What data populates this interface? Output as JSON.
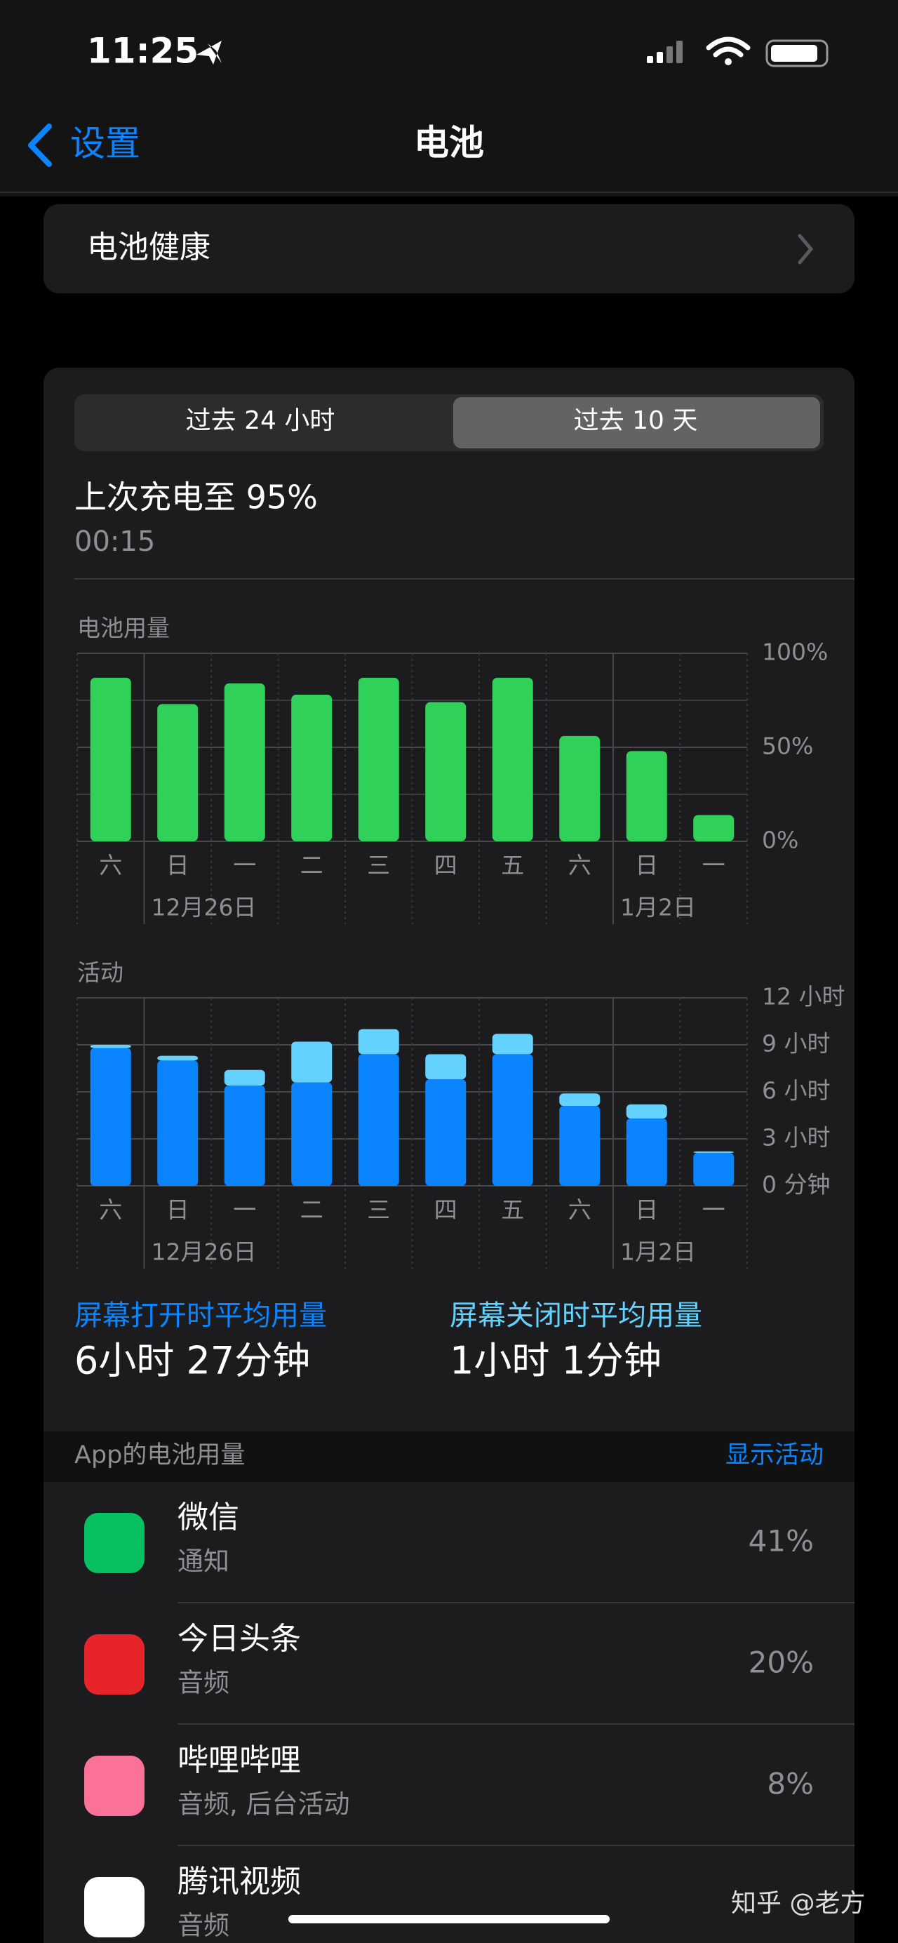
{
  "status_bar": {
    "time": "11:25"
  },
  "nav": {
    "back": "设置",
    "title": "电池"
  },
  "battery_health": "电池健康",
  "segments": [
    "过去 24 小时",
    "过去 10 天"
  ],
  "last_charge": {
    "title": "上次充电至 95%",
    "time": "00:15"
  },
  "chart_data": [
    {
      "type": "bar",
      "title": "电池用量",
      "categories": [
        "六",
        "日",
        "一",
        "二",
        "三",
        "四",
        "五",
        "六",
        "日",
        "一"
      ],
      "x_dates": [
        null,
        "12月26日",
        null,
        null,
        null,
        null,
        null,
        null,
        "1月2日",
        null
      ],
      "values": [
        87,
        73,
        84,
        78,
        87,
        74,
        87,
        56,
        48,
        14
      ],
      "color": "#30d158",
      "ylim": [
        0,
        100
      ],
      "yticks": [
        {
          "value": 0,
          "label": "0%"
        },
        {
          "value": 50,
          "label": "50%"
        },
        {
          "value": 100,
          "label": "100%"
        }
      ],
      "minor_yticks": [
        25,
        75
      ],
      "grid": true
    },
    {
      "type": "stacked_bar",
      "title": "活动",
      "categories": [
        "六",
        "日",
        "一",
        "二",
        "三",
        "四",
        "五",
        "六",
        "日",
        "一"
      ],
      "x_dates": [
        null,
        "12月26日",
        null,
        null,
        null,
        null,
        null,
        null,
        "1月2日",
        null
      ],
      "series": [
        {
          "name": "屏幕打开时平均用量",
          "color": "#0a84ff",
          "values": [
            8.8,
            8.0,
            6.4,
            6.6,
            8.4,
            6.8,
            8.4,
            5.1,
            4.3,
            2.1
          ]
        },
        {
          "name": "屏幕关闭时平均用量",
          "color": "#64d2ff",
          "values": [
            0.2,
            0.3,
            1.0,
            2.6,
            1.6,
            1.6,
            1.3,
            0.8,
            0.9,
            0.1
          ]
        }
      ],
      "ylim": [
        0,
        12
      ],
      "yticks": [
        {
          "value": 0,
          "label": "0 分钟"
        },
        {
          "value": 3,
          "label": "3 小时"
        },
        {
          "value": 6,
          "label": "6 小时"
        },
        {
          "value": 9,
          "label": "9 小时"
        },
        {
          "value": 12,
          "label": "12 小时"
        }
      ],
      "grid": true
    }
  ],
  "averages": [
    "6小时 27分钟",
    "1小时 1分钟"
  ],
  "app_section": {
    "title": "App的电池用量",
    "action": "显示活动"
  },
  "apps": [
    {
      "name": "微信",
      "detail": "通知",
      "percent": "41%"
    },
    {
      "name": "今日头条",
      "detail": "音频",
      "percent": "20%"
    },
    {
      "name": "哔哩哔哩",
      "detail": "音频, 后台活动",
      "percent": "8%"
    },
    {
      "name": "腾讯视频",
      "detail": "音频"
    }
  ],
  "watermark": "知乎 @老方"
}
